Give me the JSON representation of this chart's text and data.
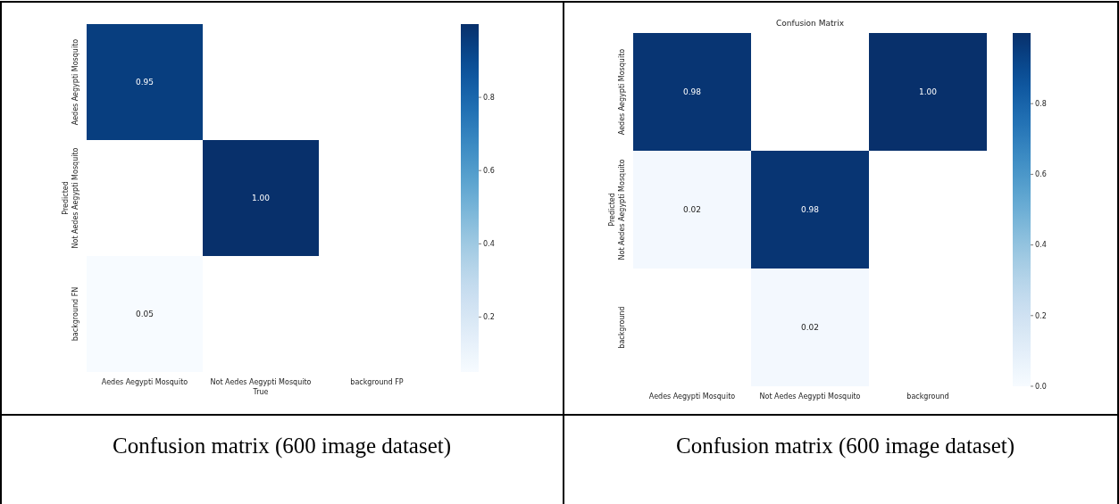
{
  "chart_data": [
    {
      "type": "heatmap",
      "xlabel": "True",
      "ylabel": "Predicted",
      "categories": [
        "Aedes Aegypti Mosquito",
        "Not Aedes Aegypti Mosquito",
        "background FP"
      ],
      "y_categories": [
        "Aedes Aegypti Mosquito",
        "Not Aedes Aegypti Mosquito",
        "background FN"
      ],
      "cells": [
        [
          0.95,
          null,
          null
        ],
        [
          null,
          1.0,
          null
        ],
        [
          0.05,
          null,
          null
        ]
      ],
      "cell_labels": [
        [
          "0.95",
          null,
          null
        ],
        [
          null,
          "1.00",
          null
        ],
        [
          "0.05",
          null,
          null
        ]
      ],
      "clim": [
        0.05,
        1.0
      ],
      "cticks": [
        0.2,
        0.4,
        0.6,
        0.8
      ],
      "annotations": [
        "Confusion matrix (600 image dataset)"
      ]
    },
    {
      "type": "heatmap",
      "title": "Confusion Matrix",
      "ylabel": "Predicted",
      "categories": [
        "Aedes Aegypti Mosquito",
        "Not Aedes Aegypti Mosquito",
        "background"
      ],
      "y_categories": [
        "Aedes Aegypti Mosquito",
        "Not Aedes Aegypti Mosquito",
        "background"
      ],
      "cells": [
        [
          0.98,
          null,
          1.0
        ],
        [
          0.02,
          0.98,
          null
        ],
        [
          null,
          0.02,
          null
        ]
      ],
      "cell_labels": [
        [
          "0.98",
          null,
          "1.00"
        ],
        [
          "0.02",
          "0.98",
          null
        ],
        [
          null,
          "0.02",
          null
        ]
      ],
      "clim": [
        0.0,
        1.0
      ],
      "cticks": [
        {
          "value": 0,
          "label": "0.0"
        },
        0.2,
        0.4,
        0.6,
        0.8
      ],
      "annotations": [
        "Confusion matrix (600 image dataset)"
      ]
    }
  ]
}
